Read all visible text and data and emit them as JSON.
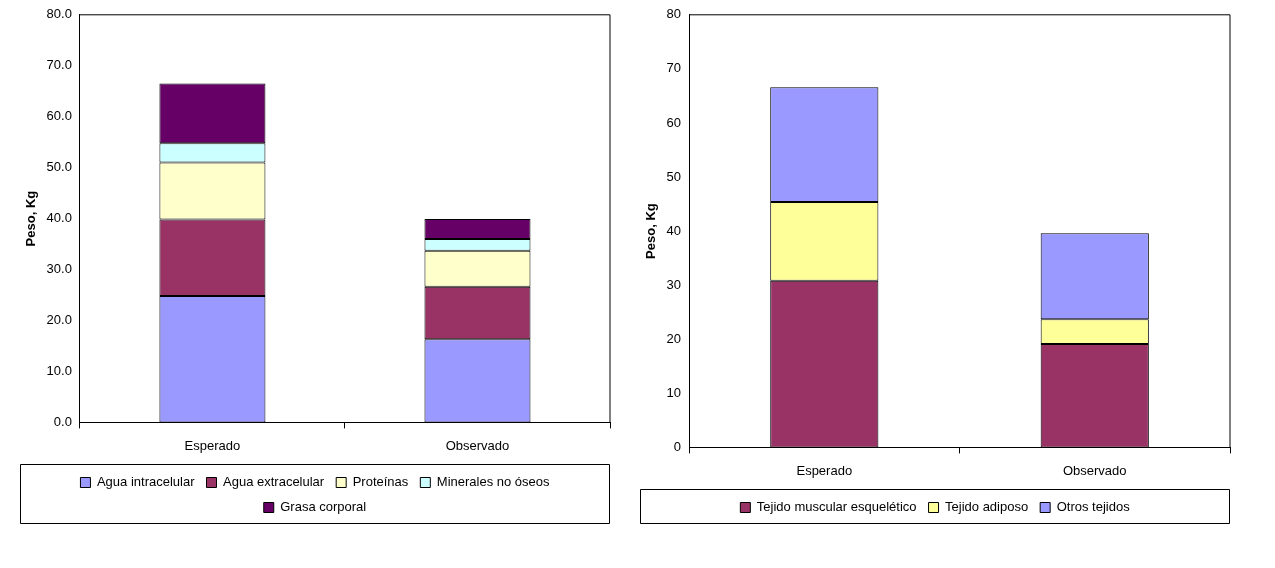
{
  "chart_data": [
    {
      "type": "bar",
      "stacked": true,
      "ylabel": "Peso, Kg",
      "categories": [
        "Esperado",
        "Observado"
      ],
      "ylim": [
        0,
        80
      ],
      "yticks": [
        {
          "value": 0,
          "label": "0.0"
        },
        {
          "value": 10,
          "label": "10.0"
        },
        {
          "value": 20,
          "label": "20.0"
        },
        {
          "value": 30,
          "label": "30.0"
        },
        {
          "value": 40,
          "label": "40.0"
        },
        {
          "value": 50,
          "label": "50.0"
        },
        {
          "value": 60,
          "label": "60.0"
        },
        {
          "value": 70,
          "label": "70.0"
        },
        {
          "value": 80,
          "label": "80.0"
        }
      ],
      "grid": false,
      "legend": "bottom",
      "series": [
        {
          "name": "Agua intracelular",
          "color": "#9999ff",
          "values": [
            24.8,
            16.3
          ]
        },
        {
          "name": "Agua extracelular",
          "color": "#993366",
          "values": [
            15.0,
            10.3
          ]
        },
        {
          "name": "Proteínas",
          "color": "#ffffcc",
          "values": [
            11.2,
            7.1
          ]
        },
        {
          "name": "Minerales no óseos",
          "color": "#ccffff",
          "values": [
            3.8,
            2.3
          ]
        },
        {
          "name": "Grasa corporal",
          "color": "#660066",
          "values": [
            11.7,
            3.9
          ]
        }
      ]
    },
    {
      "type": "bar",
      "stacked": true,
      "ylabel": "Peso, Kg",
      "categories": [
        "Esperado",
        "Observado"
      ],
      "ylim": [
        0,
        80
      ],
      "yticks": [
        0,
        10,
        20,
        30,
        40,
        50,
        60,
        70,
        80
      ],
      "grid": false,
      "legend": "bottom",
      "series": [
        {
          "name": "Tejido muscular esquelético",
          "color": "#993366",
          "values": [
            30.8,
            19.1
          ]
        },
        {
          "name": "Tejido adiposo",
          "color": "#ffff99",
          "values": [
            14.6,
            4.6
          ]
        },
        {
          "name": "Otros tejidos",
          "color": "#9999ff",
          "values": [
            21.2,
            15.9
          ]
        }
      ]
    }
  ]
}
